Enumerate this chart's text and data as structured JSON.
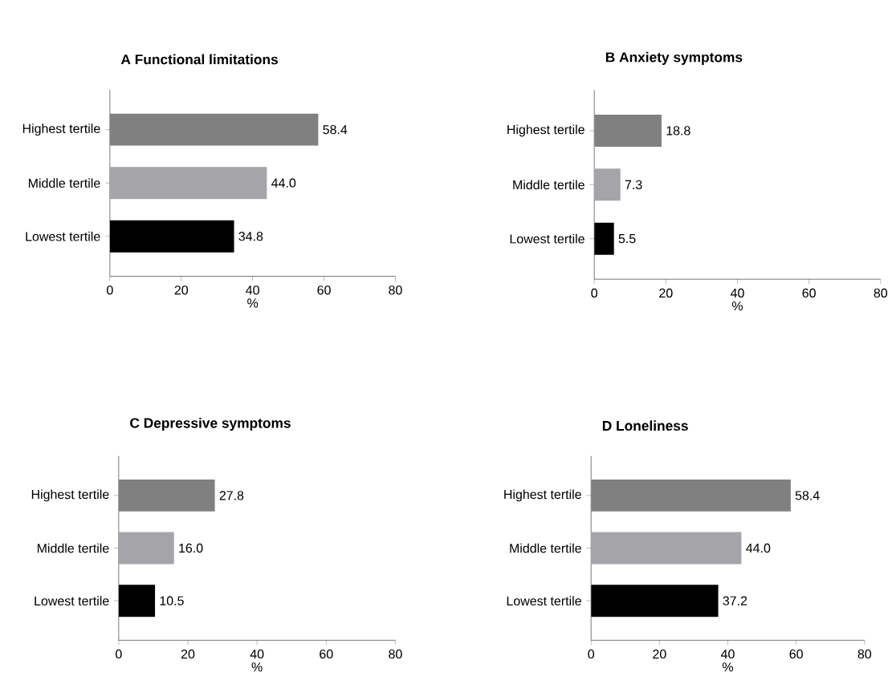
{
  "chart_data": [
    {
      "type": "bar",
      "orientation": "horizontal",
      "title": "**A  Functional limitations**",
      "xlabel": "%",
      "categories": [
        "Highest tertile",
        "Middle tertile",
        "Lowest tertile"
      ],
      "values": [
        58.4,
        44.0,
        34.8
      ],
      "value_labels": [
        "58.4",
        "44.0",
        "34.8"
      ],
      "colors": [
        "#808080",
        "#a5a4a8",
        "#000000"
      ],
      "xlim": [
        0,
        80
      ],
      "xticks": [
        0,
        20,
        40,
        60,
        80
      ]
    },
    {
      "type": "bar",
      "orientation": "horizontal",
      "title": "**B  Anxiety symptoms**",
      "xlabel": "%",
      "categories": [
        "Highest tertile",
        "Middle tertile",
        "Lowest tertile"
      ],
      "values": [
        18.8,
        7.3,
        5.5
      ],
      "value_labels": [
        "18.8",
        "7.3",
        "5.5"
      ],
      "colors": [
        "#808080",
        "#a5a4a8",
        "#000000"
      ],
      "xlim": [
        0,
        80
      ],
      "xticks": [
        0,
        20,
        40,
        60,
        80
      ]
    },
    {
      "type": "bar",
      "orientation": "horizontal",
      "title": "**C  Depressive symptoms**",
      "xlabel": "%",
      "categories": [
        "Highest tertile",
        "Middle tertile",
        "Lowest tertile"
      ],
      "values": [
        27.8,
        16.0,
        10.5
      ],
      "value_labels": [
        "27.8",
        "16.0",
        "10.5"
      ],
      "colors": [
        "#808080",
        "#a5a4a8",
        "#000000"
      ],
      "xlim": [
        0,
        80
      ],
      "xticks": [
        0,
        20,
        40,
        60,
        80
      ]
    },
    {
      "type": "bar",
      "orientation": "horizontal",
      "title": "**D  Loneliness**",
      "xlabel": "%",
      "categories": [
        "Highest tertile",
        "Middle tertile",
        "Lowest tertile"
      ],
      "values": [
        58.4,
        44.0,
        37.2
      ],
      "value_labels": [
        "58.4",
        "44.0",
        "37.2"
      ],
      "colors": [
        "#808080",
        "#a5a4a8",
        "#000000"
      ],
      "xlim": [
        0,
        80
      ],
      "xticks": [
        0,
        20,
        40,
        60,
        80
      ]
    }
  ]
}
